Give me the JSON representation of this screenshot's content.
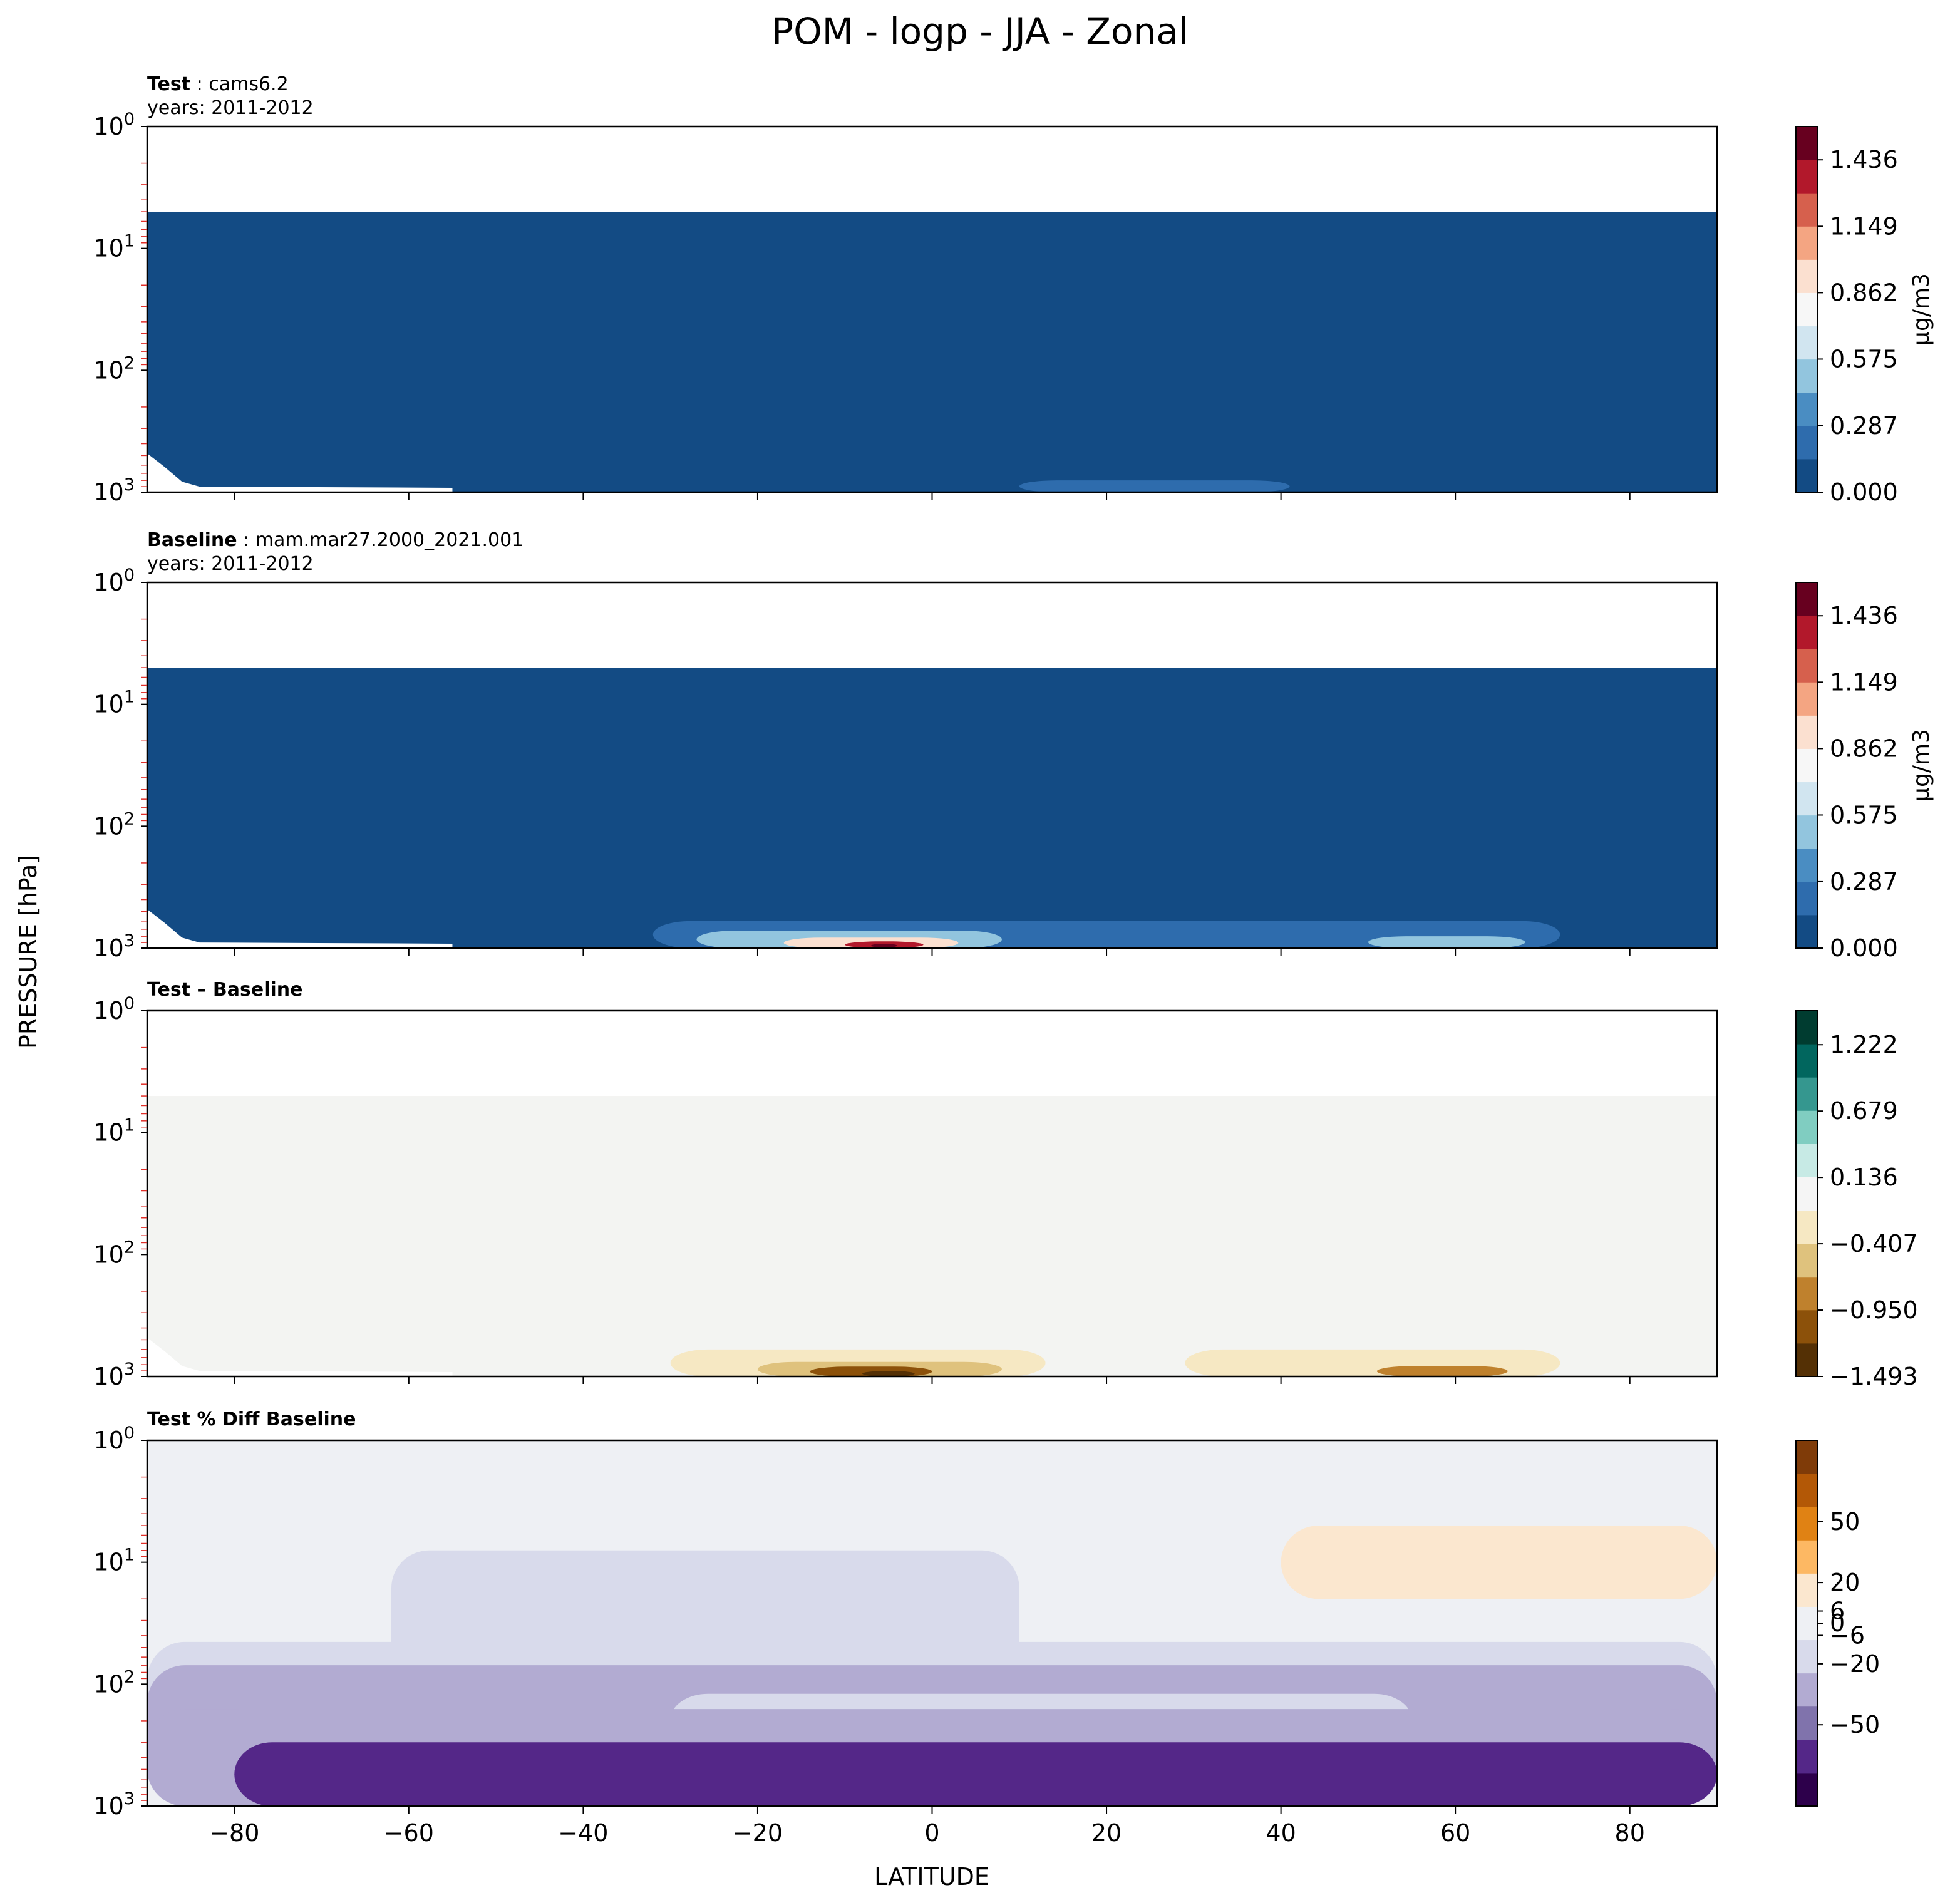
{
  "figure": {
    "title": "POM - logp - JJA - Zonal",
    "ylabel": "PRESSURE [hPa]",
    "xlabel": "LATITUDE"
  },
  "chart_data": [
    {
      "type": "heatmap",
      "panel": "test",
      "label_bold": "Test",
      "label_text": "cams6.2",
      "years_text": "years: 2011-2012",
      "x_ticks": [
        -80,
        -60,
        -40,
        -20,
        0,
        20,
        40,
        60,
        80
      ],
      "x_tick_labels": [
        "",
        "",
        "",
        "",
        "",
        "",
        "",
        "",
        ""
      ],
      "xlim": [
        -90,
        90
      ],
      "y_scale": "log",
      "ylim": [
        1000,
        1
      ],
      "y_ticks": [
        1,
        10,
        100,
        1000
      ],
      "colorbar": {
        "units": "μg/m3",
        "ticks": [
          0.0,
          0.287,
          0.575,
          0.862,
          1.149,
          1.436
        ],
        "tick_labels": [
          "0.000",
          "0.287",
          "0.575",
          "0.862",
          "1.149",
          "1.436"
        ],
        "range": [
          0.0,
          1.58
        ],
        "colors": [
          "#134b84",
          "#2e6cad",
          "#4a8dc2",
          "#92c5de",
          "#d1e5f0",
          "#f7f7f7",
          "#fbe0d0",
          "#f4a582",
          "#d6604d",
          "#b2182b",
          "#67001f"
        ]
      },
      "fill": "#134b84",
      "top_level_hpa": 5,
      "features": [
        {
          "value": 0.2,
          "lat": [
            10,
            41
          ],
          "p": [
            800,
            1000
          ]
        }
      ]
    },
    {
      "type": "heatmap",
      "panel": "baseline",
      "label_bold": "Baseline",
      "label_text": "mam.mar27.2000_2021.001",
      "years_text": "years: 2011-2012",
      "x_ticks": [
        -80,
        -60,
        -40,
        -20,
        0,
        20,
        40,
        60,
        80
      ],
      "x_tick_labels": [
        "",
        "",
        "",
        "",
        "",
        "",
        "",
        "",
        ""
      ],
      "xlim": [
        -90,
        90
      ],
      "y_scale": "log",
      "ylim": [
        1000,
        1
      ],
      "y_ticks": [
        1,
        10,
        100,
        1000
      ],
      "colorbar": {
        "units": "μg/m3",
        "ticks": [
          0.0,
          0.287,
          0.575,
          0.862,
          1.149,
          1.436
        ],
        "tick_labels": [
          "0.000",
          "0.287",
          "0.575",
          "0.862",
          "1.149",
          "1.436"
        ],
        "range": [
          0.0,
          1.58
        ],
        "colors": [
          "#134b84",
          "#2e6cad",
          "#4a8dc2",
          "#92c5de",
          "#d1e5f0",
          "#f7f7f7",
          "#fbe0d0",
          "#f4a582",
          "#d6604d",
          "#b2182b",
          "#67001f"
        ]
      },
      "fill": "#134b84",
      "top_level_hpa": 5,
      "features": [
        {
          "value": 0.2,
          "lat": [
            -32,
            72
          ],
          "p": [
            600,
            1000
          ]
        },
        {
          "value": 0.5,
          "lat": [
            -27,
            8
          ],
          "p": [
            720,
            1000
          ]
        },
        {
          "value": 0.9,
          "lat": [
            -17,
            3
          ],
          "p": [
            820,
            1000
          ]
        },
        {
          "value": 1.3,
          "lat": [
            -10,
            -1
          ],
          "p": [
            880,
            1000
          ]
        },
        {
          "value": 1.5,
          "lat": [
            -7,
            -4
          ],
          "p": [
            920,
            990
          ]
        },
        {
          "value": 0.5,
          "lat": [
            50,
            68
          ],
          "p": [
            800,
            1000
          ]
        }
      ]
    },
    {
      "type": "heatmap",
      "panel": "difference",
      "label_bold": "Test – Baseline",
      "x_ticks": [
        -80,
        -60,
        -40,
        -20,
        0,
        20,
        40,
        60,
        80
      ],
      "x_tick_labels": [
        "",
        "",
        "",
        "",
        "",
        "",
        "",
        "",
        ""
      ],
      "xlim": [
        -90,
        90
      ],
      "y_scale": "log",
      "ylim": [
        1000,
        1
      ],
      "y_ticks": [
        1,
        10,
        100,
        1000
      ],
      "colorbar": {
        "units": "",
        "ticks": [
          -1.493,
          -0.95,
          -0.407,
          0.136,
          0.679,
          1.222
        ],
        "tick_labels": [
          "−1.493",
          "−0.950",
          "−0.407",
          "0.136",
          "0.679",
          "1.222"
        ],
        "range": [
          -1.493,
          1.5
        ],
        "colors": [
          "#543005",
          "#8c510a",
          "#bf812d",
          "#dfc27d",
          "#f6e8c3",
          "#f5f5f5",
          "#c7eae5",
          "#80cdc1",
          "#35978f",
          "#01665e",
          "#003c30"
        ]
      },
      "fill": "#f3f4f2",
      "top_level_hpa": 5,
      "features": [
        {
          "value": -0.2,
          "lat": [
            -30,
            13
          ],
          "p": [
            600,
            1000
          ]
        },
        {
          "value": -0.6,
          "lat": [
            -20,
            8
          ],
          "p": [
            760,
            1000
          ]
        },
        {
          "value": -1.0,
          "lat": [
            -14,
            0
          ],
          "p": [
            830,
            1000
          ]
        },
        {
          "value": -1.4,
          "lat": [
            -8,
            -2
          ],
          "p": [
            900,
            1000
          ]
        },
        {
          "value": -0.2,
          "lat": [
            29,
            72
          ],
          "p": [
            600,
            1000
          ]
        },
        {
          "value": -0.7,
          "lat": [
            51,
            66
          ],
          "p": [
            820,
            1000
          ]
        }
      ]
    },
    {
      "type": "heatmap",
      "panel": "percent_difference",
      "label_bold": "Test % Diff Baseline",
      "x_ticks": [
        -80,
        -60,
        -40,
        -20,
        0,
        20,
        40,
        60,
        80
      ],
      "x_tick_labels": [
        "−80",
        "−60",
        "−40",
        "−20",
        "0",
        "20",
        "40",
        "60",
        "80"
      ],
      "xlim": [
        -90,
        90
      ],
      "y_scale": "log",
      "ylim": [
        1000,
        1
      ],
      "y_ticks": [
        1,
        10,
        100,
        1000
      ],
      "colorbar": {
        "units": "",
        "ticks": [
          -50,
          -20,
          -6,
          0,
          6,
          20,
          50
        ],
        "tick_labels": [
          "−50",
          "−20",
          "−6",
          "0",
          "6",
          "20",
          "50"
        ],
        "range": [
          -90,
          90
        ],
        "colors": [
          "#2d004b",
          "#542788",
          "#8073ac",
          "#b2abd2",
          "#d8daeb",
          "#eef0f4",
          "#fbe7cf",
          "#fdb863",
          "#e08214",
          "#b35806",
          "#7f3b08"
        ]
      },
      "fill": "#eef0f4",
      "features": [
        {
          "value": -4,
          "lat": [
            -77,
            20
          ],
          "p": [
            3,
            1000
          ]
        },
        {
          "value": 3,
          "lat": [
            28,
            90
          ],
          "p": [
            3,
            20
          ]
        },
        {
          "value": 10,
          "lat": [
            40,
            90
          ],
          "p": [
            5,
            20
          ]
        },
        {
          "value": -10,
          "lat": [
            -62,
            10
          ],
          "p": [
            8,
            1000
          ]
        },
        {
          "value": -15,
          "lat": [
            -90,
            90
          ],
          "p": [
            45,
            1000
          ]
        },
        {
          "value": -25,
          "lat": [
            -90,
            90
          ],
          "p": [
            70,
            1000
          ]
        },
        {
          "value": -12,
          "lat": [
            -30,
            55
          ],
          "p": [
            120,
            320
          ]
        },
        {
          "value": -40,
          "lat": [
            -90,
            90
          ],
          "p": [
            160,
            1000
          ]
        },
        {
          "value": -70,
          "lat": [
            -80,
            90
          ],
          "p": [
            300,
            1000
          ]
        }
      ]
    }
  ]
}
